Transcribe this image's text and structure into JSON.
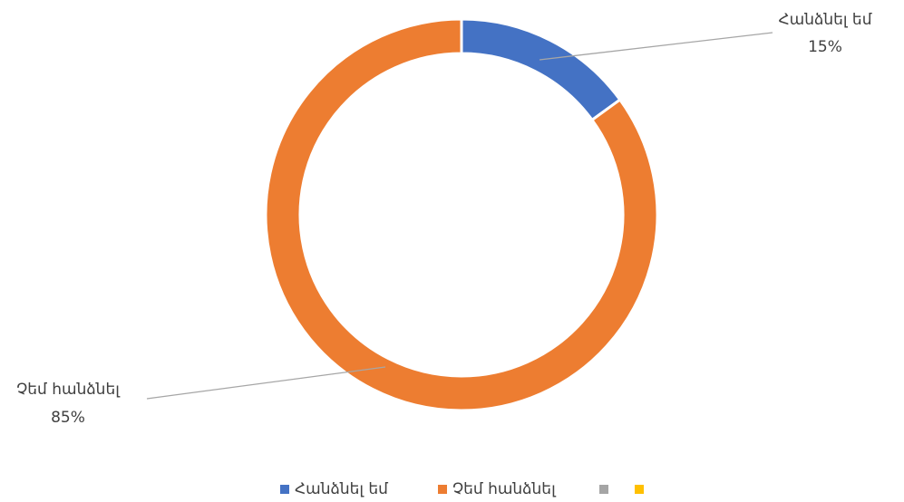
{
  "chart_data": {
    "type": "donut",
    "categories": [
      "Հանձնել եմ",
      "Չեմ հանձնել",
      null,
      null
    ],
    "values": [
      15,
      85,
      0,
      0
    ],
    "value_labels": [
      "15%",
      "85%",
      null,
      null
    ],
    "colors": [
      "#4472c4",
      "#ed7d31",
      "#a5a5a5",
      "#ffc000"
    ],
    "legend": "bottom"
  }
}
